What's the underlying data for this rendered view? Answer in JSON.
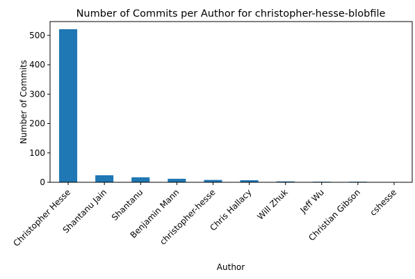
{
  "chart_data": {
    "type": "bar",
    "title": "Number of Commits per Author for christopher-hesse-blobfile",
    "xlabel": "Author",
    "ylabel": "Number of Commits",
    "categories": [
      "Christopher Hesse",
      "Shantanu Jain",
      "Shantanu",
      "Benjamin Mann",
      "christopher-hesse",
      "Chris Hallacy",
      "Will Zhuk",
      "Jeff Wu",
      "Christian Gibson",
      "cshesse"
    ],
    "values": [
      521,
      24,
      17,
      12,
      8,
      7,
      3,
      2,
      2,
      1
    ],
    "ylim": [
      0,
      547
    ],
    "yticks": [
      0,
      100,
      200,
      300,
      400,
      500
    ],
    "grid": false,
    "legend": "none",
    "bar_color": "#1f77b4"
  }
}
